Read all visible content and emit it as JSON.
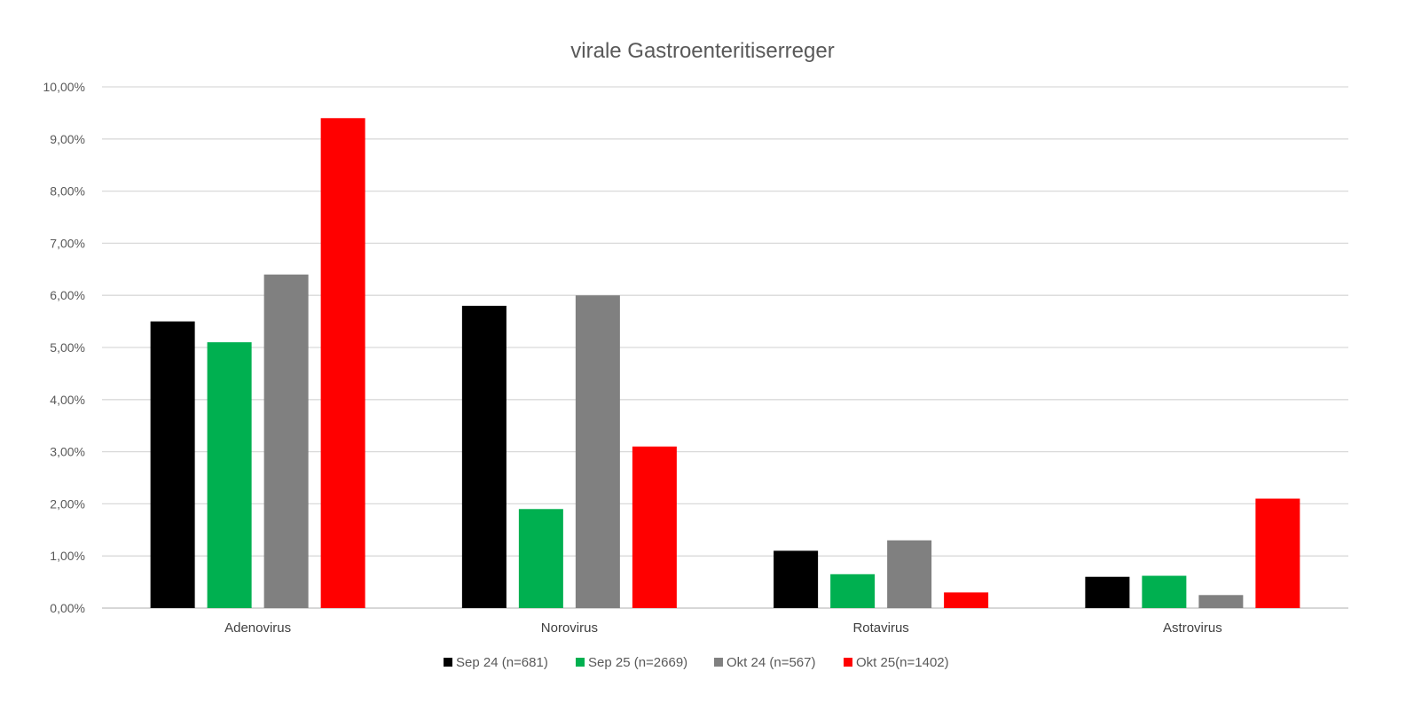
{
  "chart_data": {
    "type": "bar",
    "title": "virale Gastroenteritiserreger",
    "xlabel": "",
    "ylabel": "",
    "categories": [
      "Adenovirus",
      "Norovirus",
      "Rotavirus",
      "Astrovirus"
    ],
    "series": [
      {
        "name": "Sep 24 (n=681)",
        "color": "#000000",
        "values": [
          5.5,
          5.8,
          1.1,
          0.6
        ]
      },
      {
        "name": "Sep 25 (n=2669)",
        "color": "#00B050",
        "values": [
          5.1,
          1.9,
          0.65,
          0.62
        ]
      },
      {
        "name": "Okt 24 (n=567)",
        "color": "#808080",
        "values": [
          6.4,
          6.0,
          1.3,
          0.25
        ]
      },
      {
        "name": "Okt 25(n=1402)",
        "color": "#FF0000",
        "values": [
          9.4,
          3.1,
          0.3,
          2.1
        ]
      }
    ],
    "ylim": [
      0,
      10
    ],
    "yticks": [
      "0,00%",
      "1,00%",
      "2,00%",
      "3,00%",
      "4,00%",
      "5,00%",
      "6,00%",
      "7,00%",
      "8,00%",
      "9,00%",
      "10,00%"
    ],
    "grid": true,
    "legend": "bottom"
  }
}
